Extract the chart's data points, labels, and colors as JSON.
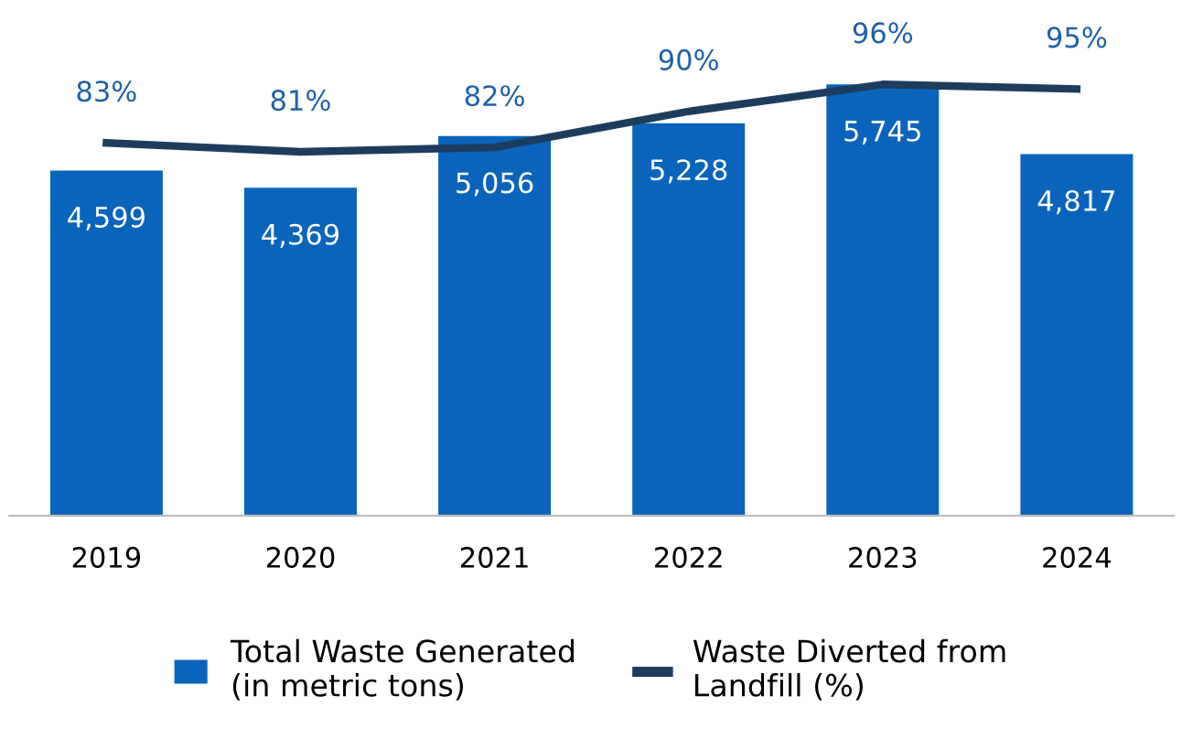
{
  "chart_data": {
    "type": "bar",
    "categories": [
      "2019",
      "2020",
      "2021",
      "2022",
      "2023",
      "2024"
    ],
    "series": [
      {
        "name": "Total Waste Generated\n(in metric tons)",
        "color": "#0a64bc",
        "values": [
          4599,
          4369,
          5056,
          5228,
          5745,
          4817
        ],
        "value_labels": [
          "4,599",
          "4,369",
          "5,056",
          "5,228",
          "5,745",
          "4,817"
        ]
      },
      {
        "name": "Waste Diverted from\nLandfill (%)",
        "type": "line",
        "axis": "y2",
        "color": "#1d3d5e",
        "values": [
          83,
          81,
          82,
          90,
          96,
          95
        ],
        "value_labels": [
          "83%",
          "81%",
          "82%",
          "90%",
          "96%",
          "95%"
        ]
      }
    ],
    "tick_labels": "x",
    "legend": "bottom",
    "grid": false,
    "marker": "none",
    "line_style": "solid"
  }
}
